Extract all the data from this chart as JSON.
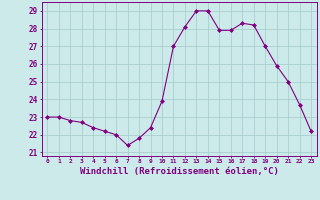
{
  "x": [
    0,
    1,
    2,
    3,
    4,
    5,
    6,
    7,
    8,
    9,
    10,
    11,
    12,
    13,
    14,
    15,
    16,
    17,
    18,
    19,
    20,
    21,
    22,
    23
  ],
  "y": [
    23.0,
    23.0,
    22.8,
    22.7,
    22.4,
    22.2,
    22.0,
    21.4,
    21.8,
    22.4,
    23.9,
    27.0,
    28.1,
    29.0,
    29.0,
    27.9,
    27.9,
    28.3,
    28.2,
    27.0,
    25.9,
    25.0,
    23.7,
    22.2
  ],
  "line_color": "#800080",
  "marker": "D",
  "marker_size": 2.0,
  "bg_color": "#cdeaea",
  "grid_color": "#aacfcf",
  "xlabel": "Windchill (Refroidissement éolien,°C)",
  "xlabel_fontsize": 6.5,
  "ylabel_ticks": [
    21,
    22,
    23,
    24,
    25,
    26,
    27,
    28,
    29
  ],
  "xtick_labels": [
    "0",
    "1",
    "2",
    "3",
    "4",
    "5",
    "6",
    "7",
    "8",
    "9",
    "10",
    "11",
    "12",
    "13",
    "14",
    "15",
    "16",
    "17",
    "18",
    "19",
    "20",
    "21",
    "22",
    "23"
  ],
  "xticks": [
    0,
    1,
    2,
    3,
    4,
    5,
    6,
    7,
    8,
    9,
    10,
    11,
    12,
    13,
    14,
    15,
    16,
    17,
    18,
    19,
    20,
    21,
    22,
    23
  ],
  "ylim": [
    20.8,
    29.5
  ],
  "xlim": [
    -0.5,
    23.5
  ]
}
